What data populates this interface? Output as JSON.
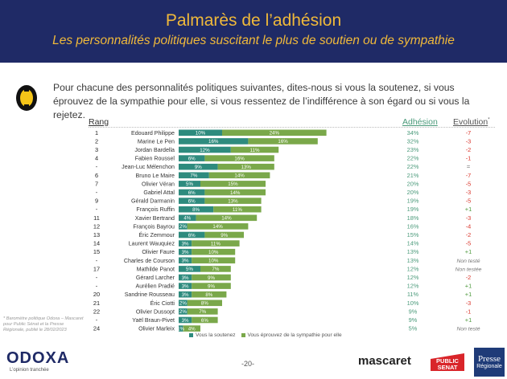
{
  "header": {
    "title": "Palmarès de l’adhésion",
    "subtitle": "Les personnalités politiques suscitant le plus de soutien ou de sympathie"
  },
  "question": "Pour chacune des personnalités politiques suivantes, dites-nous si vous la soutenez, si vous éprouvez de la sympathie pour elle, si vous ressentez de l’indifférence à son égard ou si vous la rejetez.",
  "columns": {
    "rank": "Rang",
    "adhesion": "Adhésion",
    "evolution": "Evolution",
    "evolution_mark": "*"
  },
  "colors": {
    "support": "#2e8b7e",
    "sympathy": "#7aa84a",
    "adhesion": "#4a9a7a",
    "negative": "#d9352b",
    "positive": "#4f9a3e",
    "neutral": "#777777",
    "header_bg": "#1f2a66",
    "title": "#f0b93a"
  },
  "chart_data": {
    "type": "bar",
    "stacked": true,
    "orientation": "horizontal",
    "title": "Palmarès de l’adhésion",
    "series": [
      {
        "name": "Vous la soutenez",
        "values": [
          10,
          16,
          12,
          6,
          9,
          7,
          5,
          6,
          6,
          8,
          4,
          2,
          6,
          3,
          3,
          3,
          5,
          3,
          3,
          3,
          2,
          2,
          3,
          1
        ]
      },
      {
        "name": "Vous éprouvez de la sympathie pour elle",
        "values": [
          24,
          16,
          11,
          16,
          13,
          14,
          15,
          14,
          13,
          11,
          14,
          14,
          9,
          11,
          10,
          10,
          7,
          9,
          9,
          8,
          8,
          7,
          6,
          4
        ]
      }
    ],
    "rows": [
      {
        "rank": "1",
        "name": "Edouard Philippe",
        "adhesion": "34%",
        "evolution": "-7",
        "trend": "neg"
      },
      {
        "rank": "2",
        "name": "Marine Le Pen",
        "adhesion": "32%",
        "evolution": "-3",
        "trend": "neg"
      },
      {
        "rank": "3",
        "name": "Jordan Bardella",
        "adhesion": "23%",
        "evolution": "-2",
        "trend": "neg"
      },
      {
        "rank": "4",
        "name": "Fabien Roussel",
        "adhesion": "22%",
        "evolution": "-1",
        "trend": "neg"
      },
      {
        "rank": "-",
        "name": "Jean-Luc Mélenchon",
        "adhesion": "22%",
        "evolution": "=",
        "trend": "neutral"
      },
      {
        "rank": "6",
        "name": "Bruno Le Maire",
        "adhesion": "21%",
        "evolution": "-7",
        "trend": "neg"
      },
      {
        "rank": "7",
        "name": "Olivier Véran",
        "adhesion": "20%",
        "evolution": "-5",
        "trend": "neg"
      },
      {
        "rank": "-",
        "name": "Gabriel Attal",
        "adhesion": "20%",
        "evolution": "-3",
        "trend": "neg"
      },
      {
        "rank": "9",
        "name": "Gérald Darmanin",
        "adhesion": "19%",
        "evolution": "-5",
        "trend": "neg"
      },
      {
        "rank": "-",
        "name": "François Ruffin",
        "adhesion": "19%",
        "evolution": "+1",
        "trend": "pos"
      },
      {
        "rank": "11",
        "name": "Xavier Bertrand",
        "adhesion": "18%",
        "evolution": "-3",
        "trend": "neg"
      },
      {
        "rank": "12",
        "name": "François Bayrou",
        "adhesion": "16%",
        "evolution": "-4",
        "trend": "neg"
      },
      {
        "rank": "13",
        "name": "Éric Zemmour",
        "adhesion": "15%",
        "evolution": "-2",
        "trend": "neg"
      },
      {
        "rank": "14",
        "name": "Laurent Wauquiez",
        "adhesion": "14%",
        "evolution": "-5",
        "trend": "neg"
      },
      {
        "rank": "15",
        "name": "Olivier Faure",
        "adhesion": "13%",
        "evolution": "+1",
        "trend": "pos"
      },
      {
        "rank": "-",
        "name": "Charles de Courson",
        "adhesion": "13%",
        "evolution": "Non testé",
        "trend": "nt"
      },
      {
        "rank": "17",
        "name": "Mathilde Panot",
        "adhesion": "12%",
        "evolution": "Non testée",
        "trend": "nt"
      },
      {
        "rank": "-",
        "name": "Gérard Larcher",
        "adhesion": "12%",
        "evolution": "-2",
        "trend": "neg"
      },
      {
        "rank": "-",
        "name": "Aurélien Pradié",
        "adhesion": "12%",
        "evolution": "+1",
        "trend": "pos"
      },
      {
        "rank": "20",
        "name": "Sandrine Rousseau",
        "adhesion": "11%",
        "evolution": "+1",
        "trend": "pos"
      },
      {
        "rank": "21",
        "name": "Éric Ciotti",
        "adhesion": "10%",
        "evolution": "-3",
        "trend": "neg"
      },
      {
        "rank": "22",
        "name": "Olivier Dussopt",
        "adhesion": "9%",
        "evolution": "-1",
        "trend": "neg"
      },
      {
        "rank": "-",
        "name": "Yaël Braun-Pivet",
        "adhesion": "9%",
        "evolution": "+1",
        "trend": "pos"
      },
      {
        "rank": "24",
        "name": "Olivier Marleix",
        "adhesion": "5%",
        "evolution": "Non testé",
        "trend": "nt"
      }
    ]
  },
  "legend": {
    "support": "Vous la soutenez",
    "sympathy": "Vous éprouvez de la sympathie pour elle"
  },
  "footnote": "* Baromètre politique Odoxa – Mascaret pour Public Sénat et la Presse Régionale, publié le 28/02/2023",
  "footer": {
    "brand": "ODOXA",
    "brand_tagline": "L’opinion tranchée",
    "page": "-20-",
    "partner1": "mascaret",
    "partner2_line1": "PUBLIC",
    "partner2_line2": "SENAT",
    "partner3_line1": "Presse",
    "partner3_line2": "Régionale"
  }
}
